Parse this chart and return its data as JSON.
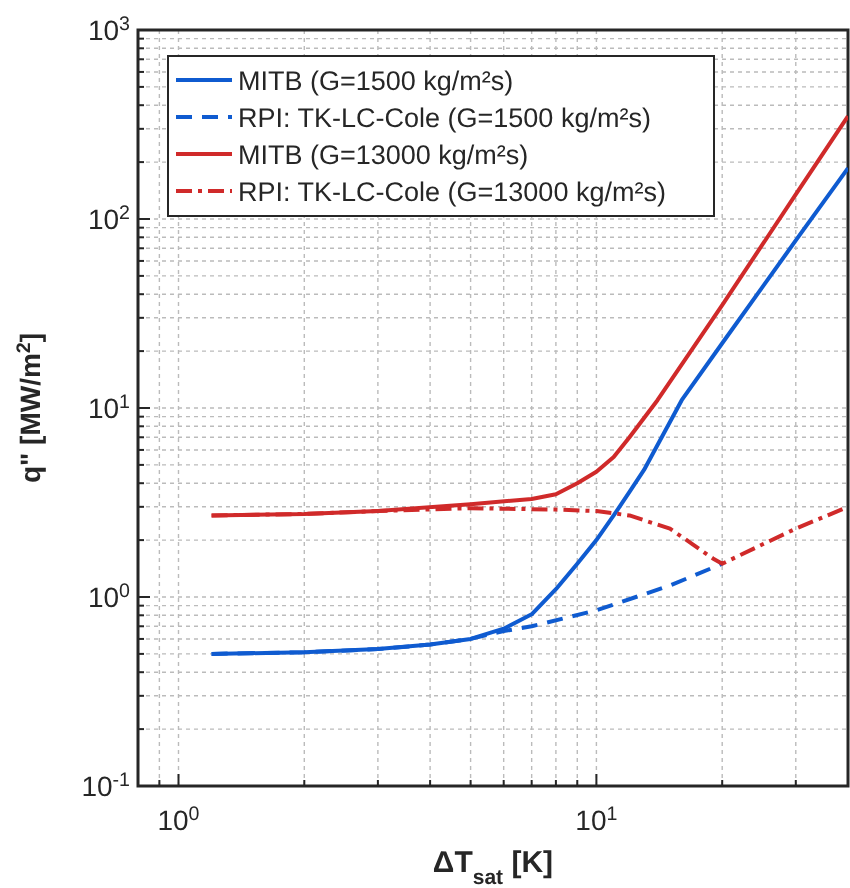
{
  "chart_data": {
    "type": "line",
    "xlabel": "ΔT$_{sat}$ [K]",
    "ylabel": "q\" [MW/m$^{2}$]",
    "log": "xy",
    "grid": true,
    "legend": "top left",
    "xlim": [
      0.8,
      40
    ],
    "ylim": [
      0.1,
      1000
    ],
    "xticks": [
      {
        "value": 0.8,
        "label": null
      },
      {
        "value": 0.9,
        "label": null
      },
      {
        "value": 1,
        "label": "10$^{0}$"
      },
      {
        "value": 2,
        "label": null
      },
      {
        "value": 3,
        "label": null
      },
      {
        "value": 4,
        "label": null
      },
      {
        "value": 5,
        "label": null
      },
      {
        "value": 6,
        "label": null
      },
      {
        "value": 7,
        "label": null
      },
      {
        "value": 8,
        "label": null
      },
      {
        "value": 9,
        "label": null
      },
      {
        "value": 10,
        "label": "10$^{1}$"
      },
      {
        "value": 20,
        "label": null
      },
      {
        "value": 30,
        "label": null
      },
      {
        "value": 40,
        "label": null
      }
    ],
    "yticks": [
      {
        "value": 0.1,
        "label": "10$^{-1}$"
      },
      {
        "value": 0.2,
        "label": null
      },
      {
        "value": 0.3,
        "label": null
      },
      {
        "value": 0.4,
        "label": null
      },
      {
        "value": 0.5,
        "label": null
      },
      {
        "value": 0.6,
        "label": null
      },
      {
        "value": 0.7,
        "label": null
      },
      {
        "value": 0.8,
        "label": null
      },
      {
        "value": 0.9,
        "label": null
      },
      {
        "value": 1,
        "label": "10$^{0}$"
      },
      {
        "value": 2,
        "label": null
      },
      {
        "value": 3,
        "label": null
      },
      {
        "value": 4,
        "label": null
      },
      {
        "value": 5,
        "label": null
      },
      {
        "value": 6,
        "label": null
      },
      {
        "value": 7,
        "label": null
      },
      {
        "value": 8,
        "label": null
      },
      {
        "value": 9,
        "label": null
      },
      {
        "value": 10,
        "label": "10$^{1}$"
      },
      {
        "value": 20,
        "label": null
      },
      {
        "value": 30,
        "label": null
      },
      {
        "value": 40,
        "label": null
      },
      {
        "value": 50,
        "label": null
      },
      {
        "value": 60,
        "label": null
      },
      {
        "value": 70,
        "label": null
      },
      {
        "value": 80,
        "label": null
      },
      {
        "value": 90,
        "label": null
      },
      {
        "value": 100,
        "label": "10$^{2}$"
      },
      {
        "value": 200,
        "label": null
      },
      {
        "value": 300,
        "label": null
      },
      {
        "value": 400,
        "label": null
      },
      {
        "value": 500,
        "label": null
      },
      {
        "value": 600,
        "label": null
      },
      {
        "value": 700,
        "label": null
      },
      {
        "value": 800,
        "label": null
      },
      {
        "value": 900,
        "label": null
      },
      {
        "value": 1000,
        "label": "10$^{3}$"
      }
    ],
    "series": [
      {
        "name": "MITB (G=1500 kg/m²s)",
        "color": "#0f5bd0",
        "line_style": "solid",
        "x": [
          1.2,
          2,
          3,
          4,
          5,
          6,
          7,
          8,
          9,
          10,
          11,
          12,
          13,
          16,
          20,
          30,
          40
        ],
        "values": [
          0.5,
          0.51,
          0.53,
          0.56,
          0.6,
          0.68,
          0.81,
          1.1,
          1.5,
          2.0,
          2.7,
          3.6,
          4.7,
          11,
          22,
          77,
          186
        ]
      },
      {
        "name": "RPI: TK-LC-Cole (G=1500 kg/m²s)",
        "color": "#0f5bd0",
        "line_style": "dashed",
        "x": [
          1.2,
          2,
          3,
          4,
          5,
          6,
          7,
          10,
          15,
          20
        ],
        "values": [
          0.5,
          0.51,
          0.53,
          0.56,
          0.6,
          0.66,
          0.7,
          0.85,
          1.15,
          1.5
        ]
      },
      {
        "name": "MITB (G=13000 kg/m²s)",
        "color": "#d02a2a",
        "line_style": "solid",
        "x": [
          1.2,
          2,
          3,
          5,
          7,
          8,
          9,
          10,
          11,
          12,
          14,
          20,
          30,
          40
        ],
        "values": [
          2.7,
          2.75,
          2.85,
          3.1,
          3.3,
          3.5,
          4.0,
          4.6,
          5.5,
          7,
          11,
          35,
          135,
          350
        ]
      },
      {
        "name": "RPI: TK-LC-Cole (G=13000 kg/m²s)",
        "color": "#d02a2a",
        "line_style": "dashdot",
        "x": [
          1.2,
          2,
          3,
          5,
          8,
          10,
          12,
          15,
          17,
          19,
          20,
          25,
          30,
          40
        ],
        "values": [
          2.7,
          2.75,
          2.85,
          2.95,
          2.9,
          2.85,
          2.7,
          2.3,
          1.9,
          1.6,
          1.5,
          1.9,
          2.3,
          3.0
        ]
      }
    ]
  }
}
